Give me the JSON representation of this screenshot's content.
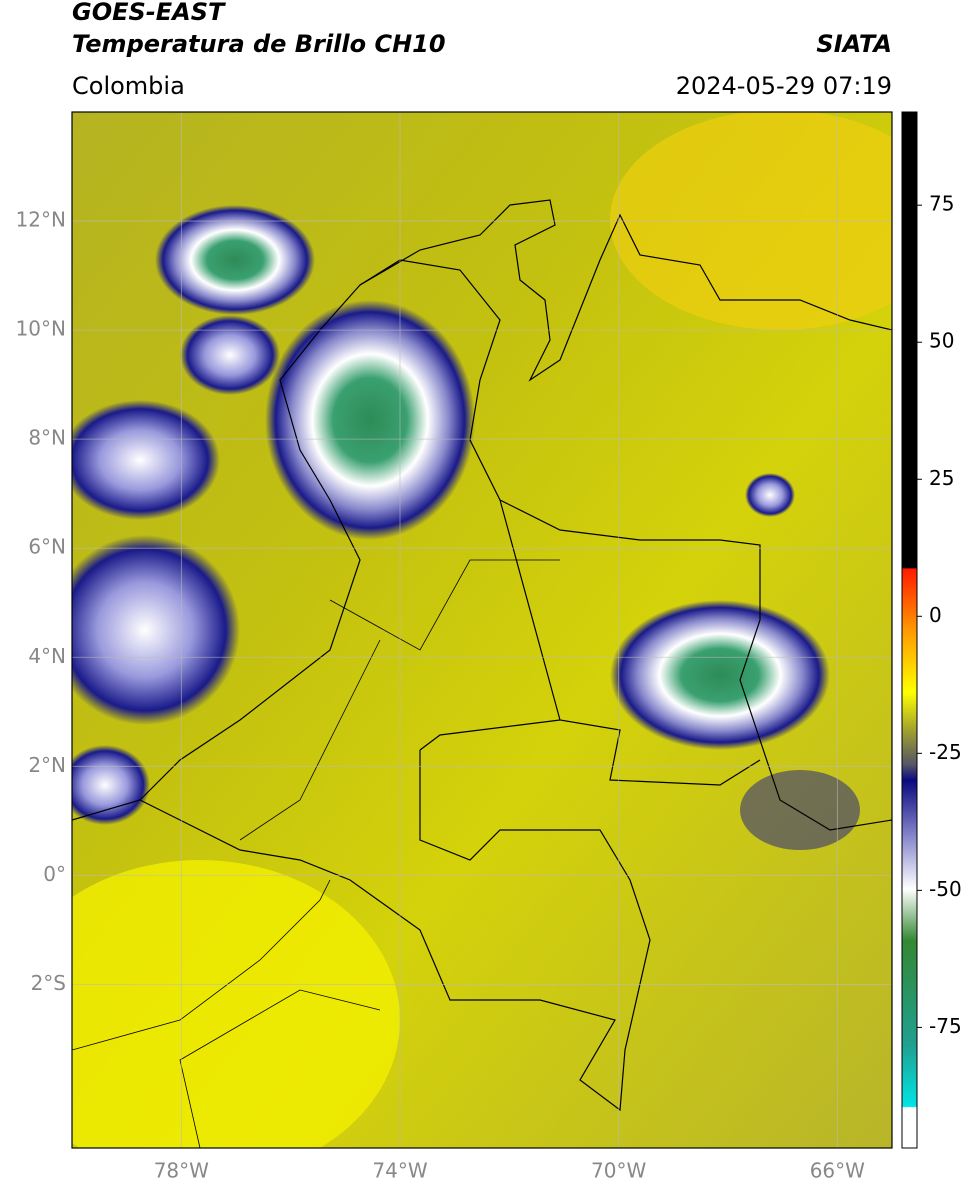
{
  "header": {
    "satellite": "GOES-EAST",
    "product": "Temperatura de Brillo CH10",
    "region": "Colombia",
    "source": "SIATA",
    "datetime": "2024-05-29 07:19"
  },
  "map": {
    "latlim": [
      -5,
      14
    ],
    "lonlim": [
      -80,
      -65
    ],
    "grid": true,
    "latticks": [
      {
        "value": 12,
        "label": "12°N"
      },
      {
        "value": 10,
        "label": "10°N"
      },
      {
        "value": 8,
        "label": "8°N"
      },
      {
        "value": 6,
        "label": "6°N"
      },
      {
        "value": 4,
        "label": "4°N"
      },
      {
        "value": 2,
        "label": "2°N"
      },
      {
        "value": 0,
        "label": "0°"
      },
      {
        "value": -2,
        "label": "2°S"
      }
    ],
    "lonticks": [
      {
        "value": -78,
        "label": "78°W"
      },
      {
        "value": -74,
        "label": "74°W"
      },
      {
        "value": -70,
        "label": "70°W"
      },
      {
        "value": -66,
        "label": "66°W"
      }
    ]
  },
  "colorbar": {
    "lim": [
      -97,
      92
    ],
    "ticks": [
      75,
      50,
      25,
      0,
      -25,
      -50,
      -75
    ]
  }
}
